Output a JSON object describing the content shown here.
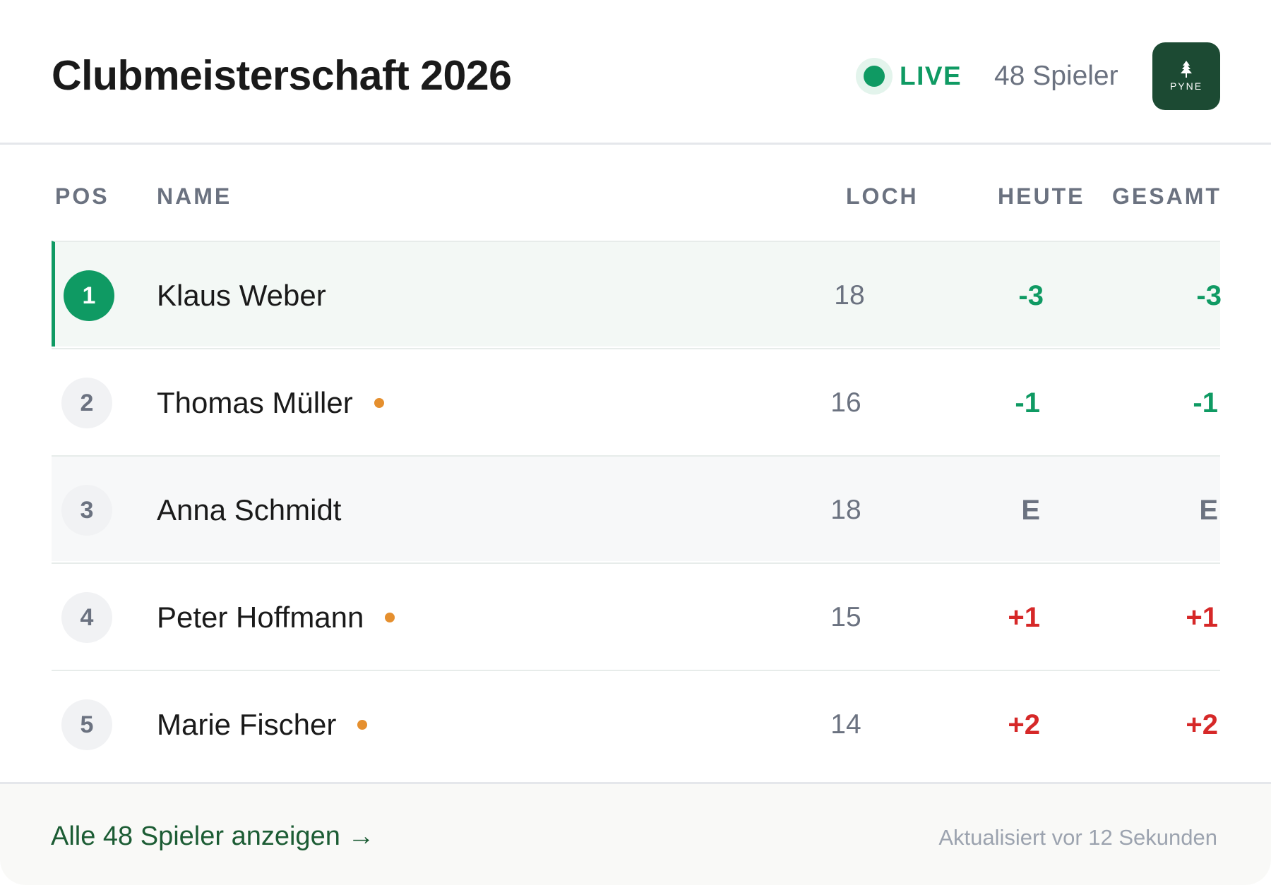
{
  "header": {
    "title": "Clubmeisterschaft 2026",
    "live_label": "LIVE",
    "player_count": "48 Spieler",
    "logo_text": "PYNE"
  },
  "columns": {
    "pos": "POS",
    "name": "NAME",
    "hole": "LOCH",
    "today": "HEUTE",
    "total": "GESAMT"
  },
  "rows": [
    {
      "pos": "1",
      "name": "Klaus Weber",
      "hole": "18",
      "today": "-3",
      "total": "-3",
      "on_course": false
    },
    {
      "pos": "2",
      "name": "Thomas Müller",
      "hole": "16",
      "today": "-1",
      "total": "-1",
      "on_course": true
    },
    {
      "pos": "3",
      "name": "Anna Schmidt",
      "hole": "18",
      "today": "E",
      "total": "E",
      "on_course": false
    },
    {
      "pos": "4",
      "name": "Peter Hoffmann",
      "hole": "15",
      "today": "+1",
      "total": "+1",
      "on_course": true
    },
    {
      "pos": "5",
      "name": "Marie Fischer",
      "hole": "14",
      "today": "+2",
      "total": "+2",
      "on_course": true
    }
  ],
  "footer": {
    "link": "Alle 48 Spieler anzeigen →",
    "updated": "Aktualisiert vor 12 Sekunden"
  },
  "colors": {
    "accent_green": "#0f9a63",
    "brand_dark_green": "#1c4a33",
    "over_par_red": "#d62828",
    "on_course_orange": "#e58f2e"
  },
  "icons": {
    "live": "live-dot-icon",
    "logo": "tree-logo-icon",
    "on_course": "on-course-dot-icon"
  }
}
